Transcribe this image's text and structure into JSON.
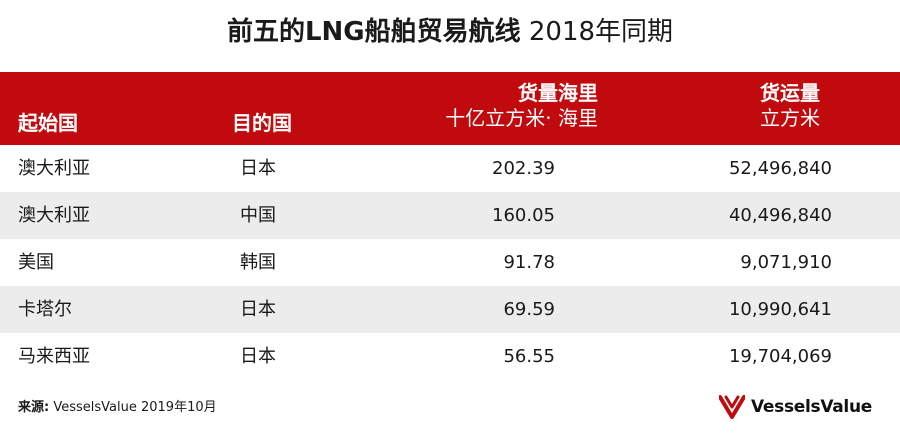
{
  "title": {
    "bold": "前五的LNG船舶贸易航线",
    "light": "2018年同期"
  },
  "header": {
    "origin": "起始国",
    "destination": "目的国",
    "miles_label": "货量海里",
    "miles_unit": "十亿立方米· 海里",
    "volume_label": "货运量",
    "volume_unit": "立方米"
  },
  "rows": [
    {
      "origin": "澳大利亚",
      "destination": "日本",
      "miles": "202.39",
      "volume": "52,496,840"
    },
    {
      "origin": "澳大利亚",
      "destination": "中国",
      "miles": "160.05",
      "volume": "40,496,840"
    },
    {
      "origin": "美国",
      "destination": "韩国",
      "miles": "91.78",
      "volume": "9,071,910"
    },
    {
      "origin": "卡塔尔",
      "destination": "日本",
      "miles": "69.59",
      "volume": "10,990,641"
    },
    {
      "origin": "马来西亚",
      "destination": "日本",
      "miles": "56.55",
      "volume": "19,704,069"
    }
  ],
  "footer": {
    "source_label": "来源:",
    "source_text": "VesselsValue 2019年10月",
    "logo_text": "VesselsValue"
  },
  "colors": {
    "header_bg": "#c00a0e",
    "alt_row_bg": "#ececec",
    "logo_red": "#c00a0e"
  },
  "icons": {
    "logo": "vesselsvalue-logo-icon"
  }
}
